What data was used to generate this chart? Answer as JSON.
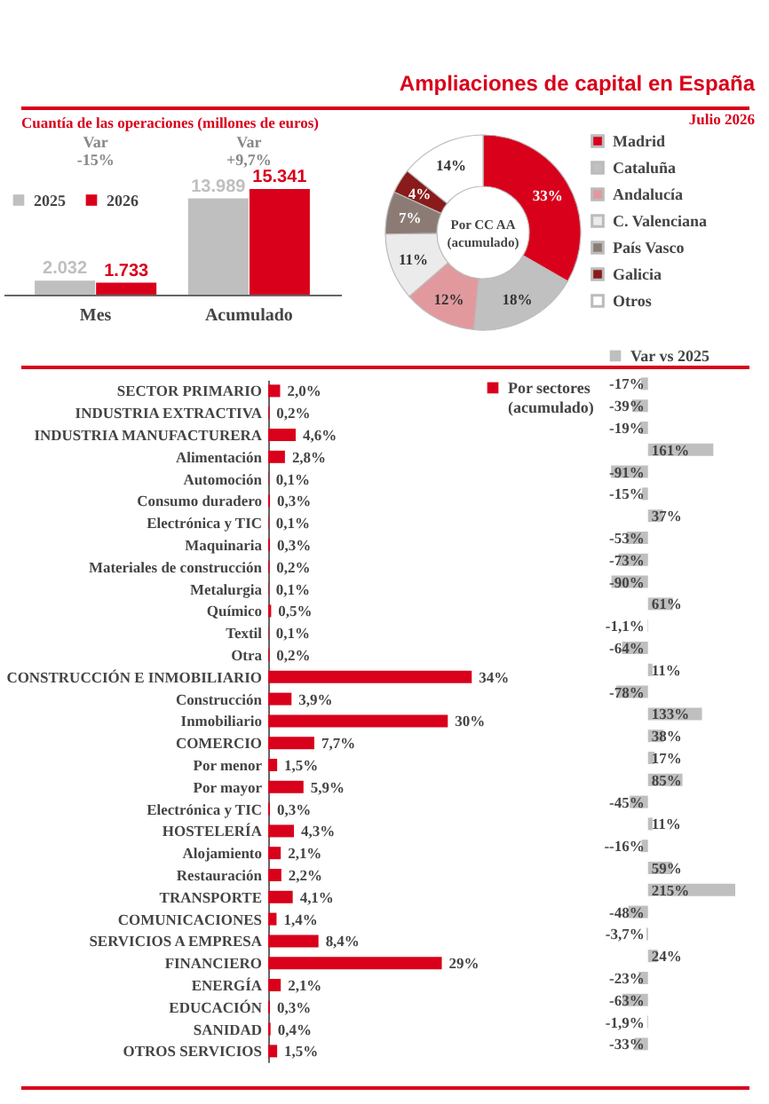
{
  "chart_data": [
    {
      "type": "bar",
      "subtitle": "Cuantía de las operaciones (millones de euros)",
      "annotations": [
        "Var -15%",
        "Var +9,7%"
      ],
      "categories": [
        "Mes",
        "Acumulado"
      ],
      "legend": "top left",
      "series": [
        {
          "name": "2025",
          "color": "#bfbfbf",
          "values": [
            2032,
            13989
          ],
          "value_labels": [
            "2.032",
            "13.989"
          ]
        },
        {
          "name": "2026",
          "color": "#d9001b",
          "values": [
            1733,
            15341
          ],
          "value_labels": [
            "1.733",
            "15.341"
          ]
        }
      ]
    },
    {
      "type": "donut",
      "title": "Ampliaciones de capital en España",
      "annotations": [
        "Julio 2026",
        "Por CC AA (acumulado)"
      ],
      "categories": [
        "Madrid",
        "Cataluña",
        "Andalucía",
        "C. Valenciana",
        "País Vasco",
        "Galicia",
        "Otros"
      ],
      "values": [
        33,
        18,
        12,
        11,
        7,
        4,
        14
      ],
      "value_labels": [
        "33%",
        "18%",
        "12%",
        "11%",
        "7%",
        "4%",
        "14%"
      ],
      "colors": [
        "#d9001b",
        "#c0c0c0",
        "#e2999e",
        "#ebebeb",
        "#8c7b75",
        "#8b1a1a",
        "#ffffff"
      ],
      "legend": "right"
    },
    {
      "type": "bar",
      "orientation": "horizontal",
      "legend": "right",
      "categories": [
        "SECTOR PRIMARIO",
        "INDUSTRIA EXTRACTIVA",
        "INDUSTRIA MANUFACTURERA",
        "Alimentación",
        "Automoción",
        "Consumo duradero",
        "Electrónica y TIC",
        "Maquinaria",
        "Materiales de construcción",
        "Metalurgia",
        "Químico",
        "Textil",
        "Otra",
        "CONSTRUCCIÓN E INMOBILIARIO",
        "Construcción",
        "Inmobiliario",
        "COMERCIO",
        "Por menor",
        "Por mayor",
        "Electrónica y TIC",
        "HOSTELERÍA",
        "Alojamiento",
        "Restauración",
        "TRANSPORTE",
        "COMUNICACIONES",
        "SERVICIOS A EMPRESA",
        "FINANCIERO",
        "ENERGÍA",
        "EDUCACIÓN",
        "SANIDAD",
        "OTROS SERVICIOS"
      ],
      "series": [
        {
          "name": "Por sectores (acumulado)",
          "color": "#d9001b",
          "values": [
            2.0,
            0.2,
            4.6,
            2.8,
            0.1,
            0.3,
            0.1,
            0.3,
            0.2,
            0.1,
            0.5,
            0.1,
            0.2,
            34,
            3.9,
            30,
            7.7,
            1.5,
            5.9,
            0.3,
            4.3,
            2.1,
            2.2,
            4.1,
            1.4,
            8.4,
            29,
            2.1,
            0.3,
            0.4,
            1.5
          ],
          "value_labels": [
            "2,0%",
            "0,2%",
            "4,6%",
            "2,8%",
            "0,1%",
            "0,3%",
            "0,1%",
            "0,3%",
            "0,2%",
            "0,1%",
            "0,5%",
            "0,1%",
            "0,2%",
            "34%",
            "3,9%",
            "30%",
            "7,7%",
            "1,5%",
            "5,9%",
            "0,3%",
            "4,3%",
            "2,1%",
            "2,2%",
            "4,1%",
            "1,4%",
            "8,4%",
            "29%",
            "2,1%",
            "0,3%",
            "0,4%",
            "1,5%"
          ]
        }
      ]
    },
    {
      "type": "bar",
      "orientation": "horizontal",
      "legend": "top",
      "categories": [
        null,
        null,
        null,
        null,
        null,
        null,
        null,
        null,
        null,
        null,
        null,
        null,
        null,
        null,
        null,
        null,
        null,
        null,
        null,
        null,
        null,
        null,
        null,
        null,
        null,
        null,
        null,
        null,
        null,
        null,
        null
      ],
      "series": [
        {
          "name": "Var vs 2025",
          "color": "#bfbfbf",
          "values": [
            -17,
            -39,
            -19,
            161,
            -91,
            -15,
            37,
            -53,
            -73,
            -90,
            61,
            -1.1,
            -64,
            11,
            -78,
            133,
            38,
            17,
            85,
            -45,
            11,
            -16,
            59,
            215,
            -48,
            -3.7,
            24,
            -23,
            -63,
            -1.9,
            -33
          ],
          "value_labels": [
            "-17%",
            "-39%",
            "-19%",
            "161%",
            "-91%",
            "-15%",
            "37%",
            "-53%",
            "-73%",
            "-90%",
            "61%",
            "-1,1%",
            "-64%",
            "11%",
            "-78%",
            "133%",
            "38%",
            "17%",
            "85%",
            "-45%",
            "11%",
            "--16%",
            "59%",
            "215%",
            "-48%",
            "-3,7%",
            "24%",
            "-23%",
            "-63%",
            "-1,9%",
            "-33%"
          ]
        }
      ]
    }
  ]
}
